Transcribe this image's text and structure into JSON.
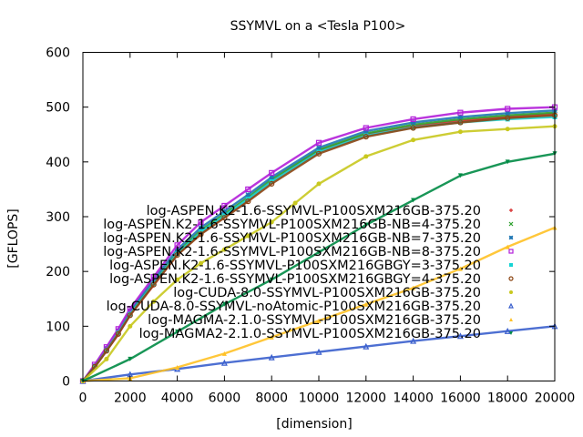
{
  "chart_data": {
    "type": "scatter",
    "title": "SSYMVL on a <Tesla P100>",
    "xlabel": "[dimension]",
    "ylabel": "[GFLOPS]",
    "xlim": [
      0,
      20000
    ],
    "ylim": [
      0,
      600
    ],
    "xticks": [
      0,
      2000,
      4000,
      6000,
      8000,
      10000,
      12000,
      14000,
      16000,
      18000,
      20000
    ],
    "yticks": [
      0,
      100,
      200,
      300,
      400,
      500,
      600
    ],
    "legend_position": "right, over plot",
    "grid": false,
    "series": [
      {
        "name": "log-ASPEN.K2-1.6-SSYMVL-P100SXM216GB-375.20",
        "color": "#d62728",
        "marker": "+",
        "x": [
          0,
          500,
          1000,
          1500,
          2000,
          3000,
          4000,
          5000,
          6000,
          7000,
          8000,
          10000,
          12000,
          14000,
          16000,
          18000,
          20000
        ],
        "y": [
          0,
          25,
          55,
          85,
          120,
          175,
          230,
          270,
          300,
          330,
          365,
          420,
          450,
          465,
          475,
          482,
          488
        ]
      },
      {
        "name": "log-ASPEN.K2-1.6-SSYMVL-P100SXM216GB-NB=4-375.20",
        "color": "#2ca02c",
        "marker": "x",
        "x": [
          0,
          500,
          1000,
          1500,
          2000,
          3000,
          4000,
          5000,
          6000,
          7000,
          8000,
          10000,
          12000,
          14000,
          16000,
          18000,
          20000
        ],
        "y": [
          0,
          27,
          58,
          90,
          125,
          180,
          235,
          275,
          305,
          335,
          368,
          422,
          452,
          468,
          478,
          485,
          490
        ]
      },
      {
        "name": "log-ASPEN.K2-1.6-SSYMVL-P100SXM216GB-NB=7-375.20",
        "color": "#1f77b4",
        "marker": "*",
        "x": [
          0,
          500,
          1000,
          1500,
          2000,
          3000,
          4000,
          5000,
          6000,
          7000,
          8000,
          10000,
          12000,
          14000,
          16000,
          18000,
          20000
        ],
        "y": [
          0,
          28,
          60,
          92,
          128,
          185,
          240,
          280,
          310,
          340,
          372,
          426,
          456,
          472,
          482,
          489,
          494
        ]
      },
      {
        "name": "log-ASPEN.K2-1.6-SSYMVL-P100SXM216GB-NB=8-375.20",
        "color": "#b21fd9",
        "marker": "square",
        "x": [
          0,
          500,
          1000,
          1500,
          2000,
          3000,
          4000,
          5000,
          6000,
          7000,
          8000,
          10000,
          12000,
          14000,
          16000,
          18000,
          20000
        ],
        "y": [
          0,
          30,
          62,
          95,
          132,
          190,
          248,
          290,
          320,
          350,
          380,
          435,
          462,
          478,
          490,
          497,
          500
        ]
      },
      {
        "name": "log-ASPEN.K2-1.6-SSYMVL-P100SXM216GBGY=3-375.20",
        "color": "#17d4d4",
        "marker": "filled-square",
        "x": [
          0,
          500,
          1000,
          1500,
          2000,
          3000,
          4000,
          5000,
          6000,
          7000,
          8000,
          10000,
          12000,
          14000,
          16000,
          18000,
          20000
        ],
        "y": [
          0,
          26,
          56,
          88,
          122,
          178,
          232,
          272,
          302,
          332,
          364,
          418,
          448,
          463,
          472,
          478,
          482
        ]
      },
      {
        "name": "log-ASPEN.K2-1.6-SSYMVL-P100SXM216GBGY=4-375.20",
        "color": "#8b4513",
        "marker": "circle",
        "x": [
          0,
          500,
          1000,
          1500,
          2000,
          3000,
          4000,
          5000,
          6000,
          7000,
          8000,
          10000,
          12000,
          14000,
          16000,
          18000,
          20000
        ],
        "y": [
          0,
          26,
          55,
          86,
          120,
          176,
          230,
          268,
          298,
          328,
          360,
          415,
          446,
          462,
          472,
          480,
          485
        ]
      },
      {
        "name": "log-CUDA-8.0-SSYMVL-P100SXM216GB-375.20",
        "color": "#c8c81e",
        "marker": "filled-circle",
        "x": [
          0,
          1000,
          2000,
          3000,
          4000,
          5000,
          6000,
          7000,
          8000,
          9000,
          10000,
          12000,
          14000,
          16000,
          18000,
          20000
        ],
        "y": [
          0,
          40,
          100,
          145,
          185,
          215,
          240,
          265,
          290,
          325,
          360,
          410,
          440,
          455,
          460,
          465
        ]
      },
      {
        "name": "log-CUDA-8.0-SSYMVL-noAtomic-P100SXM216GB-375.20",
        "color": "#3a5fcd",
        "marker": "triangle",
        "x": [
          0,
          2000,
          4000,
          6000,
          8000,
          10000,
          12000,
          14000,
          16000,
          18000,
          20000
        ],
        "y": [
          0,
          12,
          22,
          33,
          43,
          53,
          63,
          73,
          82,
          91,
          100
        ]
      },
      {
        "name": "log-MAGMA-2.1.0-SSYMVL-P100SXM216GB-375.20",
        "color": "#ffc125",
        "marker": "filled-triangle",
        "x": [
          0,
          2000,
          4000,
          6000,
          8000,
          10000,
          12000,
          14000,
          16000,
          18000,
          20000
        ],
        "y": [
          0,
          5,
          25,
          50,
          80,
          110,
          140,
          170,
          205,
          245,
          280
        ]
      },
      {
        "name": "log-MAGMA2-2.1.0-SSYMVL-P100SXM216GB-375.20",
        "color": "#008b45",
        "marker": "inverted-triangle",
        "x": [
          0,
          2000,
          4000,
          6000,
          8000,
          10000,
          12000,
          14000,
          16000,
          18000,
          20000
        ],
        "y": [
          0,
          40,
          90,
          140,
          185,
          235,
          285,
          330,
          375,
          400,
          415
        ]
      }
    ]
  }
}
